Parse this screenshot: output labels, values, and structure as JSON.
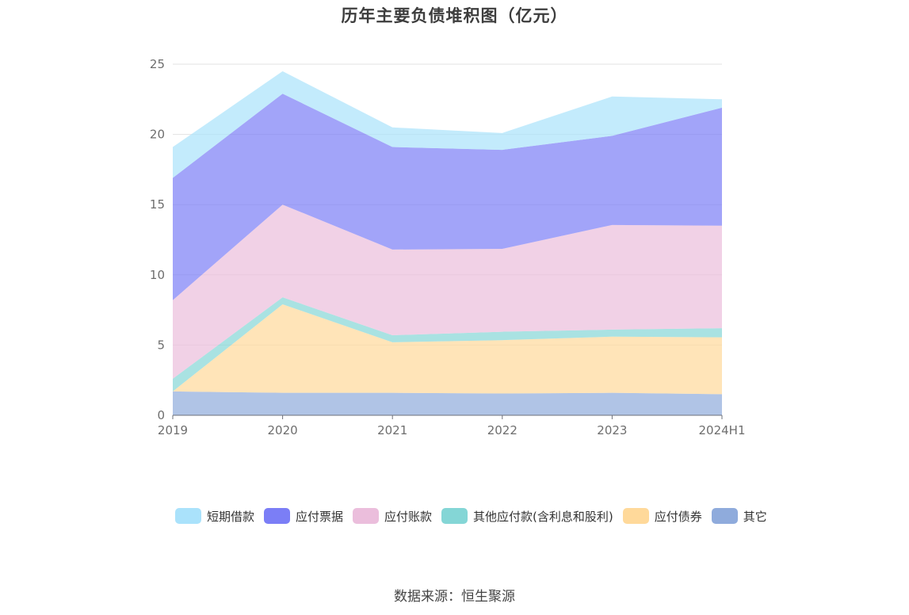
{
  "chart_data": {
    "type": "area",
    "stacked": true,
    "title": "历年主要负债堆积图（亿元）",
    "categories": [
      "2019",
      "2020",
      "2021",
      "2022",
      "2023",
      "2024H1"
    ],
    "ylim": [
      0,
      25
    ],
    "yticks": [
      0,
      5,
      10,
      15,
      20,
      25
    ],
    "grid": true,
    "legend_position": "bottom",
    "series": [
      {
        "name": "其它",
        "color": "#8fabdc",
        "values": [
          1.7,
          1.6,
          1.6,
          1.55,
          1.6,
          1.5
        ]
      },
      {
        "name": "应付债券",
        "color": "#ffd99a",
        "values": [
          0.0,
          6.3,
          3.6,
          3.8,
          4.0,
          4.05
        ]
      },
      {
        "name": "其他应付款(含利息和股利)",
        "color": "#84d6d6",
        "values": [
          0.9,
          0.5,
          0.5,
          0.6,
          0.5,
          0.65
        ]
      },
      {
        "name": "应付账款",
        "color": "#ebbedc",
        "values": [
          5.6,
          6.6,
          6.1,
          5.9,
          7.45,
          7.3
        ]
      },
      {
        "name": "应付票据",
        "color": "#7b7ef6",
        "values": [
          8.7,
          7.9,
          7.3,
          7.05,
          6.35,
          8.4
        ]
      },
      {
        "name": "短期借款",
        "color": "#aae2fb",
        "values": [
          2.2,
          1.6,
          1.4,
          1.2,
          2.8,
          0.6
        ]
      }
    ],
    "legend_order": [
      "短期借款",
      "应付票据",
      "应付账款",
      "其他应付款(含利息和股利)",
      "应付债券",
      "其它"
    ]
  },
  "source_note": "数据来源：恒生聚源"
}
